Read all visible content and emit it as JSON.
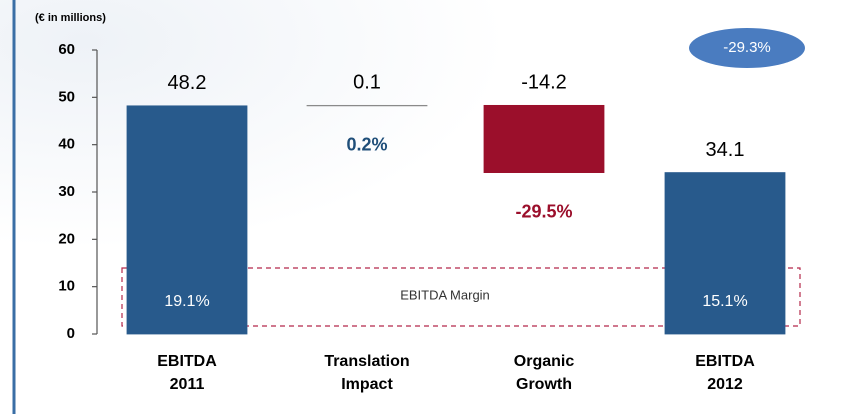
{
  "chart_data": {
    "type": "waterfall",
    "unit_label": "(€ in millions)",
    "categories": [
      [
        "EBITDA",
        "2011"
      ],
      [
        "Translation",
        "Impact"
      ],
      [
        "Organic",
        "Growth"
      ],
      [
        "EBITDA",
        "2012"
      ]
    ],
    "values": [
      48.2,
      0.1,
      -14.2,
      34.1
    ],
    "measure": [
      "absolute",
      "relative",
      "relative",
      "total"
    ],
    "colors": {
      "total": "#285a8c",
      "increase": "#8a8a8a",
      "decrease": "#9b0f2b"
    },
    "change_labels": [
      null,
      "0.2%",
      "-29.5%",
      null
    ],
    "change_label_colors": [
      null,
      "#1f4e79",
      "#9b0f2b",
      null
    ],
    "margin_title": "EBITDA Margin",
    "margin_labels": [
      "19.1%",
      null,
      null,
      "15.1%"
    ],
    "total_change_label": "-29.3%",
    "ylim": [
      0,
      60
    ],
    "yticks": [
      0,
      10,
      20,
      30,
      40,
      50,
      60
    ]
  }
}
